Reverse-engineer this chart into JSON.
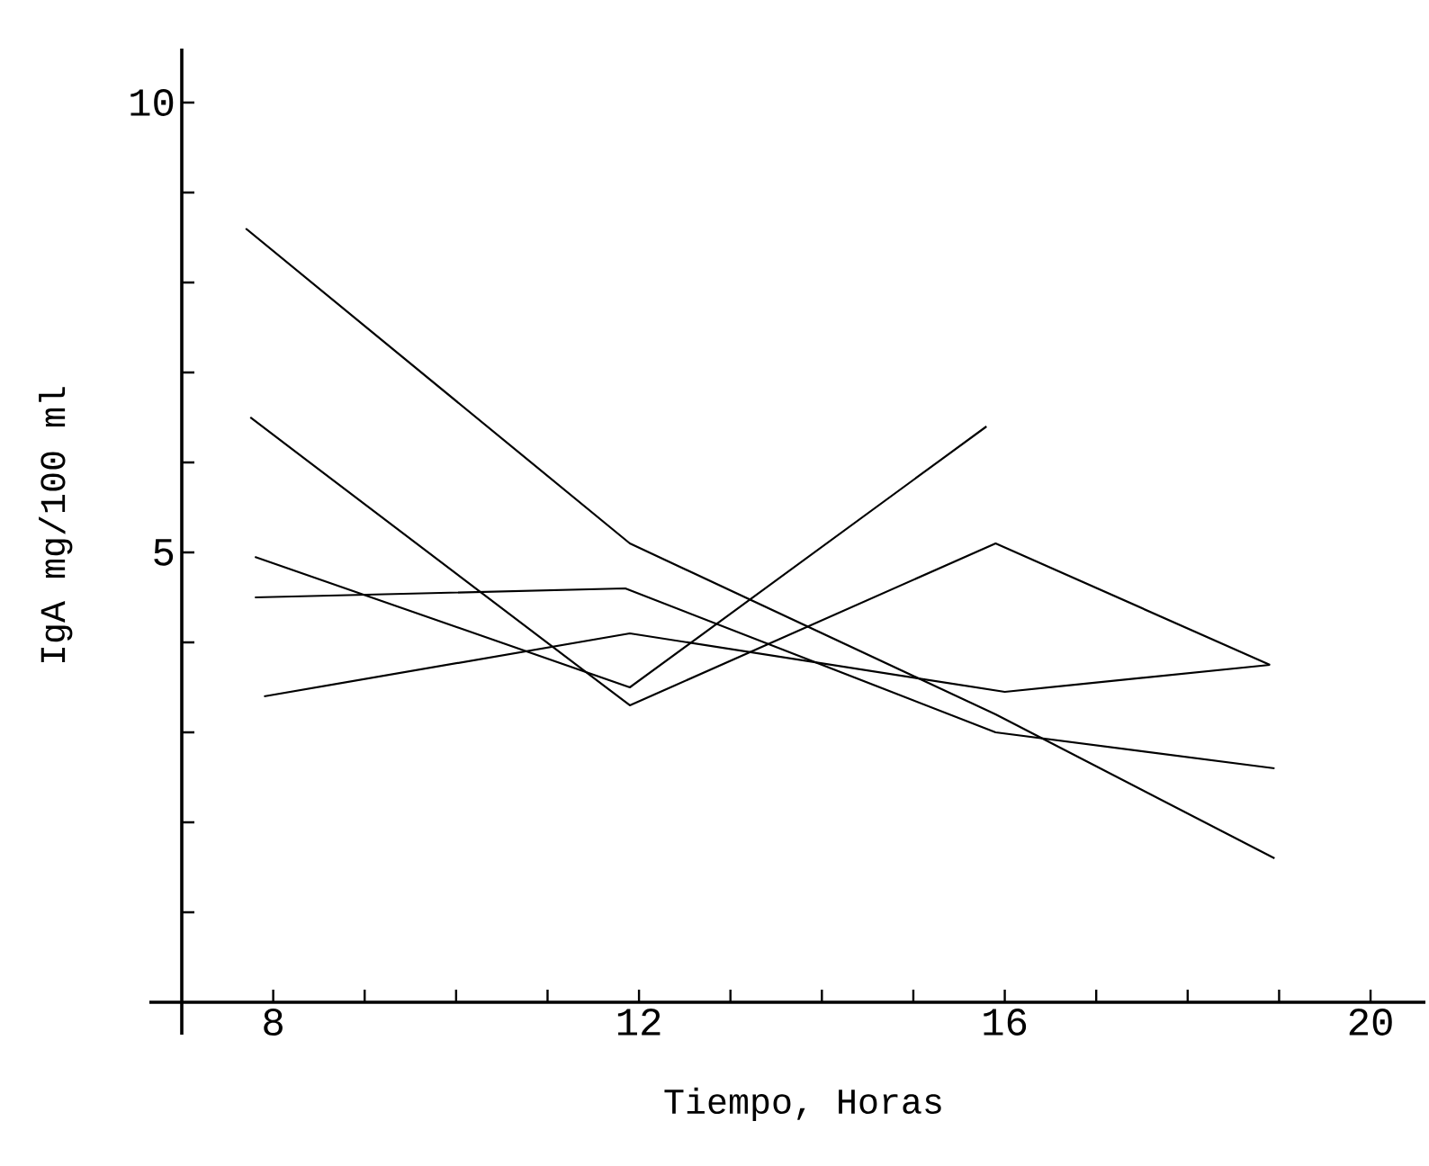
{
  "chart_data": {
    "type": "line",
    "xlabel": "Tiempo, Horas",
    "ylabel": "IgA mg/100 ml",
    "xlim": [
      7,
      20.6
    ],
    "ylim": [
      0,
      10.6
    ],
    "xticks": [
      {
        "value": 8,
        "label": "8"
      },
      {
        "value": 9,
        "label": null
      },
      {
        "value": 10,
        "label": null
      },
      {
        "value": 11,
        "label": null
      },
      {
        "value": 12,
        "label": "12"
      },
      {
        "value": 13,
        "label": null
      },
      {
        "value": 14,
        "label": null
      },
      {
        "value": 15,
        "label": null
      },
      {
        "value": 16,
        "label": "16"
      },
      {
        "value": 17,
        "label": null
      },
      {
        "value": 18,
        "label": null
      },
      {
        "value": 19,
        "label": null
      },
      {
        "value": 20,
        "label": "20"
      }
    ],
    "yticks": [
      {
        "value": 1,
        "label": null
      },
      {
        "value": 2,
        "label": null
      },
      {
        "value": 3,
        "label": null
      },
      {
        "value": 4,
        "label": null
      },
      {
        "value": 5,
        "label": "5"
      },
      {
        "value": 6,
        "label": null
      },
      {
        "value": 7,
        "label": null
      },
      {
        "value": 8,
        "label": null
      },
      {
        "value": 9,
        "label": null
      },
      {
        "value": 10,
        "label": "10"
      }
    ],
    "grid": false,
    "marker": "none",
    "line_style": "solid",
    "series": [
      {
        "color": "#000000",
        "x": [
          7.7,
          11.9,
          15.9,
          18.95
        ],
        "values": [
          8.6,
          5.1,
          3.2,
          1.6
        ]
      },
      {
        "color": "#000000",
        "x": [
          7.75,
          11.9,
          15.9,
          18.9
        ],
        "values": [
          6.5,
          3.3,
          5.1,
          3.75
        ]
      },
      {
        "color": "#000000",
        "x": [
          7.8,
          11.9,
          15.8
        ],
        "values": [
          4.95,
          3.5,
          6.4
        ]
      },
      {
        "color": "#000000",
        "x": [
          7.8,
          11.85,
          15.9,
          18.95
        ],
        "values": [
          4.5,
          4.6,
          3.0,
          2.6
        ]
      },
      {
        "color": "#000000",
        "x": [
          7.9,
          11.9,
          16.0,
          18.9
        ],
        "values": [
          3.4,
          4.1,
          3.45,
          3.75
        ]
      }
    ]
  }
}
